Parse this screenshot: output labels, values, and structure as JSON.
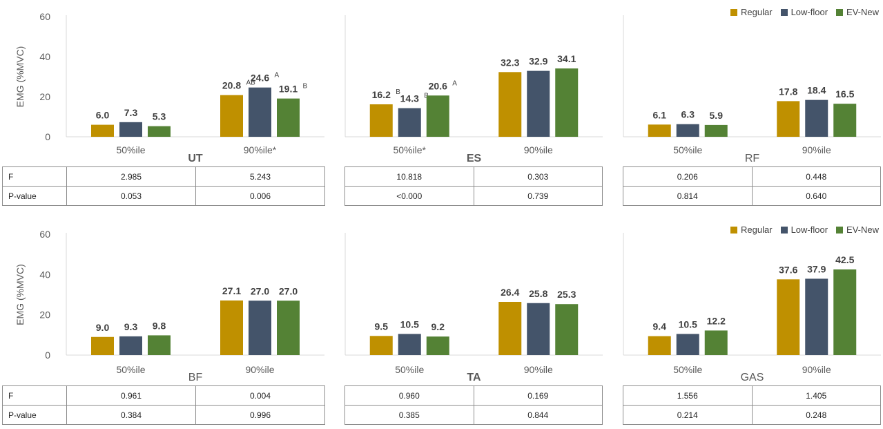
{
  "colors": {
    "Regular": "#bf9000",
    "Low-floor": "#44546a",
    "EV-New": "#548235"
  },
  "legend": [
    "Regular",
    "Low-floor",
    "EV-New"
  ],
  "ylabel": "EMG (%MVC)",
  "chart_data": [
    {
      "type": "bar",
      "title": "UT",
      "categories": [
        "50%ile",
        "90%ile*"
      ],
      "ylim": [
        0,
        60
      ],
      "yticks": [
        0,
        20,
        40,
        60
      ],
      "series": [
        {
          "name": "Regular",
          "values": [
            6.0,
            20.8
          ],
          "labels": [
            "6.0",
            "20.8"
          ],
          "sup": [
            "",
            "AB"
          ]
        },
        {
          "name": "Low-floor",
          "values": [
            7.3,
            24.6
          ],
          "labels": [
            "7.3",
            "24.6"
          ],
          "sup": [
            "",
            "A"
          ]
        },
        {
          "name": "EV-New",
          "values": [
            5.3,
            19.1
          ],
          "labels": [
            "5.3",
            "19.1"
          ],
          "sup": [
            "",
            "B"
          ]
        }
      ],
      "stats": {
        "F": [
          "2.985",
          "5.243"
        ],
        "P-value": [
          "0.053",
          "0.006"
        ]
      }
    },
    {
      "type": "bar",
      "title": "ES",
      "categories": [
        "50%ile*",
        "90%ile"
      ],
      "ylim": [
        0,
        60
      ],
      "yticks": [
        0,
        20,
        40,
        60
      ],
      "series": [
        {
          "name": "Regular",
          "values": [
            16.2,
            32.3
          ],
          "labels": [
            "16.2",
            "32.3"
          ],
          "sup": [
            "B",
            ""
          ]
        },
        {
          "name": "Low-floor",
          "values": [
            14.3,
            32.9
          ],
          "labels": [
            "14.3",
            "32.9"
          ],
          "sup": [
            "B",
            ""
          ]
        },
        {
          "name": "EV-New",
          "values": [
            20.6,
            34.1
          ],
          "labels": [
            "20.6",
            "34.1"
          ],
          "sup": [
            "A",
            ""
          ]
        }
      ],
      "stats": {
        "F": [
          "10.818",
          "0.303"
        ],
        "P-value": [
          "<0.000",
          "0.739"
        ]
      }
    },
    {
      "type": "bar",
      "title": "RF",
      "categories": [
        "50%ile",
        "90%ile"
      ],
      "ylim": [
        0,
        60
      ],
      "yticks": [
        0,
        20,
        40,
        60
      ],
      "series": [
        {
          "name": "Regular",
          "values": [
            6.1,
            17.8
          ],
          "labels": [
            "6.1",
            "17.8"
          ],
          "sup": [
            "",
            ""
          ]
        },
        {
          "name": "Low-floor",
          "values": [
            6.3,
            18.4
          ],
          "labels": [
            "6.3",
            "18.4"
          ],
          "sup": [
            "",
            ""
          ]
        },
        {
          "name": "EV-New",
          "values": [
            5.9,
            16.5
          ],
          "labels": [
            "5.9",
            "16.5"
          ],
          "sup": [
            "",
            ""
          ]
        }
      ],
      "stats": {
        "F": [
          "0.206",
          "0.448"
        ],
        "P-value": [
          "0.814",
          "0.640"
        ]
      }
    },
    {
      "type": "bar",
      "title": "BF",
      "categories": [
        "50%ile",
        "90%ile"
      ],
      "ylim": [
        0,
        60
      ],
      "yticks": [
        0,
        20,
        40,
        60
      ],
      "series": [
        {
          "name": "Regular",
          "values": [
            9.0,
            27.1
          ],
          "labels": [
            "9.0",
            "27.1"
          ],
          "sup": [
            "",
            ""
          ]
        },
        {
          "name": "Low-floor",
          "values": [
            9.3,
            27.0
          ],
          "labels": [
            "9.3",
            "27.0"
          ],
          "sup": [
            "",
            ""
          ]
        },
        {
          "name": "EV-New",
          "values": [
            9.8,
            27.0
          ],
          "labels": [
            "9.8",
            "27.0"
          ],
          "sup": [
            "",
            ""
          ]
        }
      ],
      "stats": {
        "F": [
          "0.961",
          "0.004"
        ],
        "P-value": [
          "0.384",
          "0.996"
        ]
      }
    },
    {
      "type": "bar",
      "title": "TA",
      "categories": [
        "50%ile",
        "90%ile"
      ],
      "ylim": [
        0,
        60
      ],
      "yticks": [
        0,
        20,
        40,
        60
      ],
      "series": [
        {
          "name": "Regular",
          "values": [
            9.5,
            26.4
          ],
          "labels": [
            "9.5",
            "26.4"
          ],
          "sup": [
            "",
            ""
          ]
        },
        {
          "name": "Low-floor",
          "values": [
            10.5,
            25.8
          ],
          "labels": [
            "10.5",
            "25.8"
          ],
          "sup": [
            "",
            ""
          ]
        },
        {
          "name": "EV-New",
          "values": [
            9.2,
            25.3
          ],
          "labels": [
            "9.2",
            "25.3"
          ],
          "sup": [
            "",
            ""
          ]
        }
      ],
      "stats": {
        "F": [
          "0.960",
          "0.169"
        ],
        "P-value": [
          "0.385",
          "0.844"
        ]
      }
    },
    {
      "type": "bar",
      "title": "GAS",
      "categories": [
        "50%ile",
        "90%ile"
      ],
      "ylim": [
        0,
        60
      ],
      "yticks": [
        0,
        20,
        40,
        60
      ],
      "series": [
        {
          "name": "Regular",
          "values": [
            9.4,
            37.6
          ],
          "labels": [
            "9.4",
            "37.6"
          ],
          "sup": [
            "",
            ""
          ]
        },
        {
          "name": "Low-floor",
          "values": [
            10.5,
            37.9
          ],
          "labels": [
            "10.5",
            "37.9"
          ],
          "sup": [
            "",
            ""
          ]
        },
        {
          "name": "EV-New",
          "values": [
            12.2,
            42.5
          ],
          "labels": [
            "12.2",
            "42.5"
          ],
          "sup": [
            "",
            ""
          ]
        }
      ],
      "stats": {
        "F": [
          "1.556",
          "1.405"
        ],
        "P-value": [
          "0.214",
          "0.248"
        ]
      }
    }
  ],
  "stat_rows": [
    "F",
    "P-value"
  ]
}
